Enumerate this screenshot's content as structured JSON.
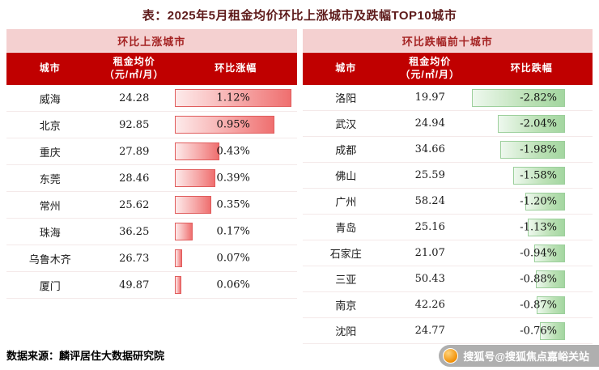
{
  "title": "表：2025年5月租金均价环比上涨城市及跌幅TOP10城市",
  "source": "数据来源：麟评居住大数据研究院",
  "watermark": "搜狐号@搜狐焦点嘉峪关站",
  "colors": {
    "header_red": "#c00000",
    "band_pink": "#f4d0d0",
    "band_text": "#a42222",
    "title_text": "#5e1b1b",
    "rise_bar": "#ef6f6f",
    "fall_bar": "#a3d6a0"
  },
  "tables": [
    {
      "id": "rise",
      "band": "环比上涨城市",
      "columns": {
        "city": "城市",
        "price": "租金均价\n（元/㎡/月）",
        "change": "环比涨幅"
      }
    },
    {
      "id": "fall",
      "band": "环比跌幅前十城市",
      "columns": {
        "city": "城市",
        "price": "租金均价\n（元/㎡/月）",
        "change": "环比跌幅"
      }
    }
  ],
  "chart_data": [
    {
      "type": "bar",
      "title": "环比上涨城市",
      "orientation": "horizontal",
      "unit": "%",
      "value_range": [
        0,
        1.12
      ],
      "categories": [
        "威海",
        "北京",
        "重庆",
        "东莞",
        "常州",
        "珠海",
        "乌鲁木齐",
        "厦门"
      ],
      "series": [
        {
          "name": "租金均价（元/㎡/月）",
          "values": [
            24.28,
            92.85,
            27.89,
            28.46,
            25.62,
            36.25,
            26.73,
            49.87
          ]
        },
        {
          "name": "环比涨幅(%)",
          "values": [
            1.12,
            0.95,
            0.43,
            0.39,
            0.35,
            0.17,
            0.07,
            0.06
          ]
        }
      ]
    },
    {
      "type": "bar",
      "title": "环比跌幅前十城市",
      "orientation": "horizontal",
      "unit": "%",
      "value_range": [
        -2.82,
        0
      ],
      "categories": [
        "洛阳",
        "武汉",
        "成都",
        "佛山",
        "广州",
        "青岛",
        "石家庄",
        "三亚",
        "南京",
        "沈阳"
      ],
      "series": [
        {
          "name": "租金均价（元/㎡/月）",
          "values": [
            19.97,
            24.94,
            34.66,
            25.59,
            58.24,
            25.16,
            21.07,
            50.43,
            42.26,
            24.77
          ]
        },
        {
          "name": "环比跌幅(%)",
          "values": [
            -2.82,
            -2.04,
            -1.98,
            -1.58,
            -1.2,
            -1.13,
            -0.94,
            -0.88,
            -0.87,
            -0.76
          ]
        }
      ]
    }
  ]
}
